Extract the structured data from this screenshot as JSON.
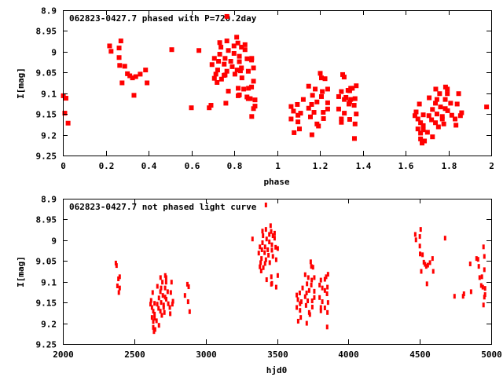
{
  "colors": {
    "points": "#ff0000",
    "axes": "#000000"
  },
  "observations": {
    "columns": [
      "hjd",
      "mag"
    ],
    "rows": [
      [
        2371,
        9.055
      ],
      [
        2376,
        9.061
      ],
      [
        2389,
        9.093
      ],
      [
        2398,
        9.088
      ],
      [
        2382,
        9.11
      ],
      [
        2398,
        9.115
      ],
      [
        2392,
        9.126
      ],
      [
        2684,
        9.09
      ],
      [
        2717,
        9.085
      ],
      [
        2723,
        9.09
      ],
      [
        2761,
        9.101
      ],
      [
        2697,
        9.101
      ],
      [
        2723,
        9.101
      ],
      [
        2662,
        9.111
      ],
      [
        2688,
        9.115
      ],
      [
        2716,
        9.115
      ],
      [
        2629,
        9.126
      ],
      [
        2683,
        9.124
      ],
      [
        2734,
        9.124
      ],
      [
        2756,
        9.126
      ],
      [
        2700,
        9.133
      ],
      [
        2716,
        9.137
      ],
      [
        2673,
        9.139
      ],
      [
        2724,
        9.142
      ],
      [
        2771,
        9.147
      ],
      [
        2618,
        9.145
      ],
      [
        2642,
        9.152
      ],
      [
        2614,
        9.154
      ],
      [
        2661,
        9.154
      ],
      [
        2688,
        9.15
      ],
      [
        2706,
        9.156
      ],
      [
        2738,
        9.153
      ],
      [
        2767,
        9.154
      ],
      [
        2624,
        9.162
      ],
      [
        2670,
        9.164
      ],
      [
        2706,
        9.162
      ],
      [
        2749,
        9.162
      ],
      [
        2633,
        9.171
      ],
      [
        2683,
        9.171
      ],
      [
        2711,
        9.174
      ],
      [
        2752,
        9.177
      ],
      [
        2642,
        9.178
      ],
      [
        2693,
        9.181
      ],
      [
        2624,
        9.186
      ],
      [
        2642,
        9.188
      ],
      [
        2656,
        9.194
      ],
      [
        2633,
        9.196
      ],
      [
        2673,
        9.205
      ],
      [
        2633,
        9.21
      ],
      [
        2646,
        9.215
      ],
      [
        2638,
        9.22
      ],
      [
        2872,
        9.106
      ],
      [
        2881,
        9.112
      ],
      [
        2855,
        9.133
      ],
      [
        2877,
        9.148
      ],
      [
        2888,
        9.172
      ],
      [
        3422,
        8.915
      ],
      [
        3328,
        8.997
      ],
      [
        3455,
        8.965
      ],
      [
        3422,
        8.974
      ],
      [
        3398,
        8.978
      ],
      [
        3459,
        8.979
      ],
      [
        3483,
        8.983
      ],
      [
        3446,
        8.986
      ],
      [
        3402,
        8.989
      ],
      [
        3471,
        8.989
      ],
      [
        3427,
        8.997
      ],
      [
        3483,
        8.995
      ],
      [
        3446,
        9.004
      ],
      [
        3398,
        9.006
      ],
      [
        3464,
        9.011
      ],
      [
        3380,
        9.016
      ],
      [
        3416,
        9.016
      ],
      [
        3490,
        9.017
      ],
      [
        3505,
        9.02
      ],
      [
        3394,
        9.023
      ],
      [
        3435,
        9.023
      ],
      [
        3464,
        9.024
      ],
      [
        3372,
        9.031
      ],
      [
        3413,
        9.03
      ],
      [
        3440,
        9.036
      ],
      [
        3471,
        9.039
      ],
      [
        3391,
        9.044
      ],
      [
        3422,
        9.047
      ],
      [
        3494,
        9.047
      ],
      [
        3385,
        9.054
      ],
      [
        3449,
        9.054
      ],
      [
        3416,
        9.056
      ],
      [
        3380,
        9.064
      ],
      [
        3404,
        9.066
      ],
      [
        3389,
        9.074
      ],
      [
        3460,
        9.088
      ],
      [
        3505,
        9.085
      ],
      [
        3427,
        9.095
      ],
      [
        3464,
        9.104
      ],
      [
        3460,
        9.106
      ],
      [
        3494,
        9.113
      ],
      [
        3736,
        9.052
      ],
      [
        3740,
        9.063
      ],
      [
        3752,
        9.065
      ],
      [
        3697,
        9.083
      ],
      [
        3719,
        9.09
      ],
      [
        3761,
        9.09
      ],
      [
        3743,
        9.096
      ],
      [
        3807,
        9.096
      ],
      [
        3835,
        9.094
      ],
      [
        3857,
        9.082
      ],
      [
        3844,
        9.088
      ],
      [
        3710,
        9.105
      ],
      [
        3740,
        9.108
      ],
      [
        3798,
        9.108
      ],
      [
        3817,
        9.115
      ],
      [
        3853,
        9.113
      ],
      [
        3679,
        9.115
      ],
      [
        3725,
        9.121
      ],
      [
        3761,
        9.123
      ],
      [
        3835,
        9.121
      ],
      [
        3659,
        9.127
      ],
      [
        3707,
        9.127
      ],
      [
        3850,
        9.129
      ],
      [
        3638,
        9.132
      ],
      [
        3697,
        9.136
      ],
      [
        3761,
        9.138
      ],
      [
        3798,
        9.138
      ],
      [
        3646,
        9.143
      ],
      [
        3670,
        9.148
      ],
      [
        3715,
        9.146
      ],
      [
        3746,
        9.146
      ],
      [
        3817,
        9.148
      ],
      [
        3857,
        9.15
      ],
      [
        3661,
        9.153
      ],
      [
        3703,
        9.157
      ],
      [
        3747,
        9.161
      ],
      [
        3807,
        9.162
      ],
      [
        3835,
        9.163
      ],
      [
        3638,
        9.162
      ],
      [
        3661,
        9.169
      ],
      [
        3725,
        9.174
      ],
      [
        3807,
        9.17
      ],
      [
        3853,
        9.174
      ],
      [
        3666,
        9.186
      ],
      [
        3730,
        9.179
      ],
      [
        3648,
        9.195
      ],
      [
        3708,
        9.2
      ],
      [
        3851,
        9.209
      ],
      [
        4506,
        8.974
      ],
      [
        4468,
        8.986
      ],
      [
        4500,
        8.991
      ],
      [
        4473,
        8.999
      ],
      [
        4677,
        8.995
      ],
      [
        4500,
        9.014
      ],
      [
        4502,
        9.033
      ],
      [
        4519,
        9.035
      ],
      [
        4589,
        9.044
      ],
      [
        4528,
        9.053
      ],
      [
        4536,
        9.058
      ],
      [
        4545,
        9.063
      ],
      [
        4556,
        9.06
      ],
      [
        4571,
        9.054
      ],
      [
        4510,
        9.075
      ],
      [
        4594,
        9.075
      ],
      [
        4550,
        9.105
      ],
      [
        4743,
        9.135
      ],
      [
        4803,
        9.135
      ],
      [
        4809,
        9.129
      ],
      [
        4859,
        9.124
      ],
      [
        4853,
        9.057
      ],
      [
        4897,
        9.044
      ],
      [
        4908,
        9.046
      ],
      [
        4913,
        9.063
      ],
      [
        4946,
        9.016
      ],
      [
        4952,
        9.039
      ],
      [
        4952,
        9.071
      ],
      [
        4919,
        9.09
      ],
      [
        4935,
        9.088
      ],
      [
        4930,
        9.109
      ],
      [
        4941,
        9.113
      ],
      [
        4957,
        9.116
      ],
      [
        4957,
        9.131
      ],
      [
        4952,
        9.137
      ],
      [
        4946,
        9.156
      ]
    ]
  },
  "chart_data": [
    {
      "type": "scatter",
      "title": "062823-0427.7 phased with P=720.2day",
      "xlabel": "phase",
      "ylabel": "I[mag]",
      "xlim": [
        0,
        2
      ],
      "ylim": [
        8.9,
        9.25
      ],
      "y_inverted": true,
      "period_days": 720.2,
      "epoch_hjd": 2870.5,
      "phase_cycles": 2,
      "points_source": "observations (phase = ((hjd - epoch)/period) mod 2)",
      "xticks": [
        "0",
        "0.2",
        "0.4",
        "0.6",
        "0.8",
        "1",
        "1.2",
        "1.4",
        "1.6",
        "1.8",
        "2"
      ],
      "xtick_values": [
        0,
        0.2,
        0.4,
        0.6,
        0.8,
        1,
        1.2,
        1.4,
        1.6,
        1.8,
        2
      ],
      "yticks": [
        "8.9",
        "8.95",
        "9",
        "9.05",
        "9.1",
        "9.15",
        "9.2",
        "9.25"
      ],
      "ytick_values": [
        8.9,
        8.95,
        9,
        9.05,
        9.1,
        9.15,
        9.2,
        9.25
      ],
      "grid": false,
      "legend": "none"
    },
    {
      "type": "scatter",
      "title": "062823-0427.7 not phased light curve",
      "xlabel": "hjd0",
      "ylabel": "I[mag]",
      "xlim": [
        2000,
        5000
      ],
      "ylim": [
        8.9,
        9.25
      ],
      "y_inverted": true,
      "points_source": "observations",
      "xticks": [
        "2000",
        "2500",
        "3000",
        "3500",
        "4000",
        "4500",
        "5000"
      ],
      "xtick_values": [
        2000,
        2500,
        3000,
        3500,
        4000,
        4500,
        5000
      ],
      "yticks": [
        "8.9",
        "8.95",
        "9",
        "9.05",
        "9.1",
        "9.15",
        "9.2",
        "9.25"
      ],
      "ytick_values": [
        8.9,
        8.95,
        9,
        9.05,
        9.1,
        9.15,
        9.2,
        9.25
      ],
      "grid": false,
      "legend": "none"
    }
  ]
}
